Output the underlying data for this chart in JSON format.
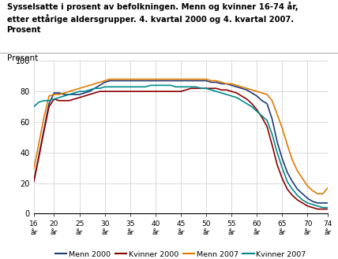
{
  "title_lines": [
    "Sysselsatte i prosent av befolkningen. Menn og kvinner 16-74 år,",
    "etter ettårige aldersgrupper. 4. kvartal 2000 og 4. kvartal 2007.",
    "Prosent"
  ],
  "ylabel": "Prosent",
  "ages": [
    16,
    17,
    18,
    19,
    20,
    21,
    22,
    23,
    24,
    25,
    26,
    27,
    28,
    29,
    30,
    31,
    32,
    33,
    34,
    35,
    36,
    37,
    38,
    39,
    40,
    41,
    42,
    43,
    44,
    45,
    46,
    47,
    48,
    49,
    50,
    51,
    52,
    53,
    54,
    55,
    56,
    57,
    58,
    59,
    60,
    61,
    62,
    63,
    64,
    65,
    66,
    67,
    68,
    69,
    70,
    71,
    72,
    73,
    74
  ],
  "menn2000": [
    21,
    38,
    55,
    72,
    79,
    79,
    78,
    78,
    78,
    78,
    79,
    80,
    82,
    84,
    86,
    87,
    87,
    87,
    87,
    87,
    87,
    87,
    87,
    87,
    87,
    87,
    87,
    87,
    87,
    87,
    87,
    87,
    87,
    87,
    87,
    86,
    86,
    85,
    85,
    84,
    83,
    82,
    81,
    79,
    77,
    74,
    72,
    62,
    47,
    36,
    27,
    21,
    16,
    13,
    10,
    8,
    7,
    7,
    7
  ],
  "kvinner2000": [
    21,
    37,
    54,
    70,
    75,
    74,
    74,
    74,
    75,
    76,
    77,
    78,
    79,
    80,
    80,
    80,
    80,
    80,
    80,
    80,
    80,
    80,
    80,
    80,
    80,
    80,
    80,
    80,
    80,
    80,
    81,
    82,
    82,
    82,
    82,
    82,
    82,
    81,
    81,
    80,
    79,
    77,
    75,
    72,
    68,
    63,
    57,
    45,
    32,
    23,
    16,
    12,
    9,
    7,
    5,
    4,
    3,
    3,
    3
  ],
  "menn2007": [
    29,
    46,
    63,
    77,
    78,
    78,
    79,
    80,
    81,
    82,
    83,
    84,
    85,
    86,
    87,
    88,
    88,
    88,
    88,
    88,
    88,
    88,
    88,
    88,
    88,
    88,
    88,
    88,
    88,
    88,
    88,
    88,
    88,
    88,
    88,
    87,
    87,
    86,
    85,
    85,
    84,
    83,
    82,
    81,
    80,
    79,
    78,
    74,
    65,
    56,
    45,
    35,
    28,
    23,
    18,
    15,
    13,
    13,
    17
  ],
  "kvinner2007": [
    70,
    73,
    74,
    74,
    75,
    76,
    77,
    78,
    79,
    80,
    80,
    81,
    82,
    82,
    83,
    83,
    83,
    83,
    83,
    83,
    83,
    83,
    83,
    84,
    84,
    84,
    84,
    84,
    83,
    83,
    83,
    83,
    83,
    82,
    82,
    81,
    80,
    79,
    78,
    77,
    76,
    74,
    72,
    70,
    67,
    64,
    61,
    52,
    40,
    30,
    21,
    16,
    12,
    9,
    7,
    6,
    5,
    4,
    4
  ],
  "colors": {
    "menn2000": "#1f3b7a",
    "kvinner2000": "#8b0000",
    "menn2007": "#e07b00",
    "kvinner2007": "#008b8b"
  },
  "legend": [
    {
      "label": "Menn 2000",
      "color": "#1f3b7a"
    },
    {
      "label": "Kvinner 2000",
      "color": "#8b0000"
    },
    {
      "label": "Menn 2007",
      "color": "#e07b00"
    },
    {
      "label": "Kvinner 2007",
      "color": "#008b8b"
    }
  ],
  "ylim": [
    0,
    100
  ],
  "yticks": [
    0,
    20,
    40,
    60,
    80,
    100
  ],
  "xticks": [
    16,
    20,
    25,
    30,
    35,
    40,
    45,
    50,
    55,
    60,
    65,
    70,
    74
  ],
  "xticklabels": [
    "16\når",
    "20\når",
    "25\når",
    "30\når",
    "35\når",
    "40\når",
    "45\når",
    "50\når",
    "55\når",
    "60\når",
    "65\når",
    "70\når",
    "74\når"
  ],
  "background_color": "#ffffff",
  "grid_color": "#cccccc",
  "linewidth": 1.2
}
